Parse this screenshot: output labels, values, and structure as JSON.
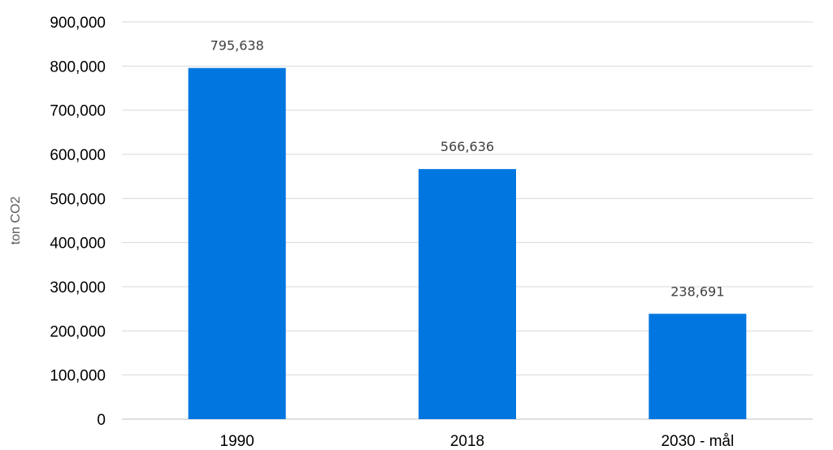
{
  "chart_data": {
    "type": "bar",
    "title": "",
    "xlabel": "",
    "ylabel": "ton CO2",
    "categories": [
      "1990",
      "2018",
      "2030 - mål"
    ],
    "values": [
      795638,
      566636,
      238691
    ],
    "data_labels": [
      "795,638",
      "566,636",
      "238,691"
    ],
    "ylim": [
      0,
      900000
    ],
    "yticks": [
      0,
      100000,
      200000,
      300000,
      400000,
      500000,
      600000,
      700000,
      800000,
      900000
    ],
    "ytick_labels": [
      "0",
      "100,000",
      "200,000",
      "300,000",
      "400,000",
      "500,000",
      "600,000",
      "700,000",
      "800,000",
      "900,000"
    ],
    "grid": true,
    "legend": "none",
    "colors": {
      "bar": "#0077E0",
      "grid": "#D9D9D9",
      "axis": "#BFBFBF"
    }
  }
}
